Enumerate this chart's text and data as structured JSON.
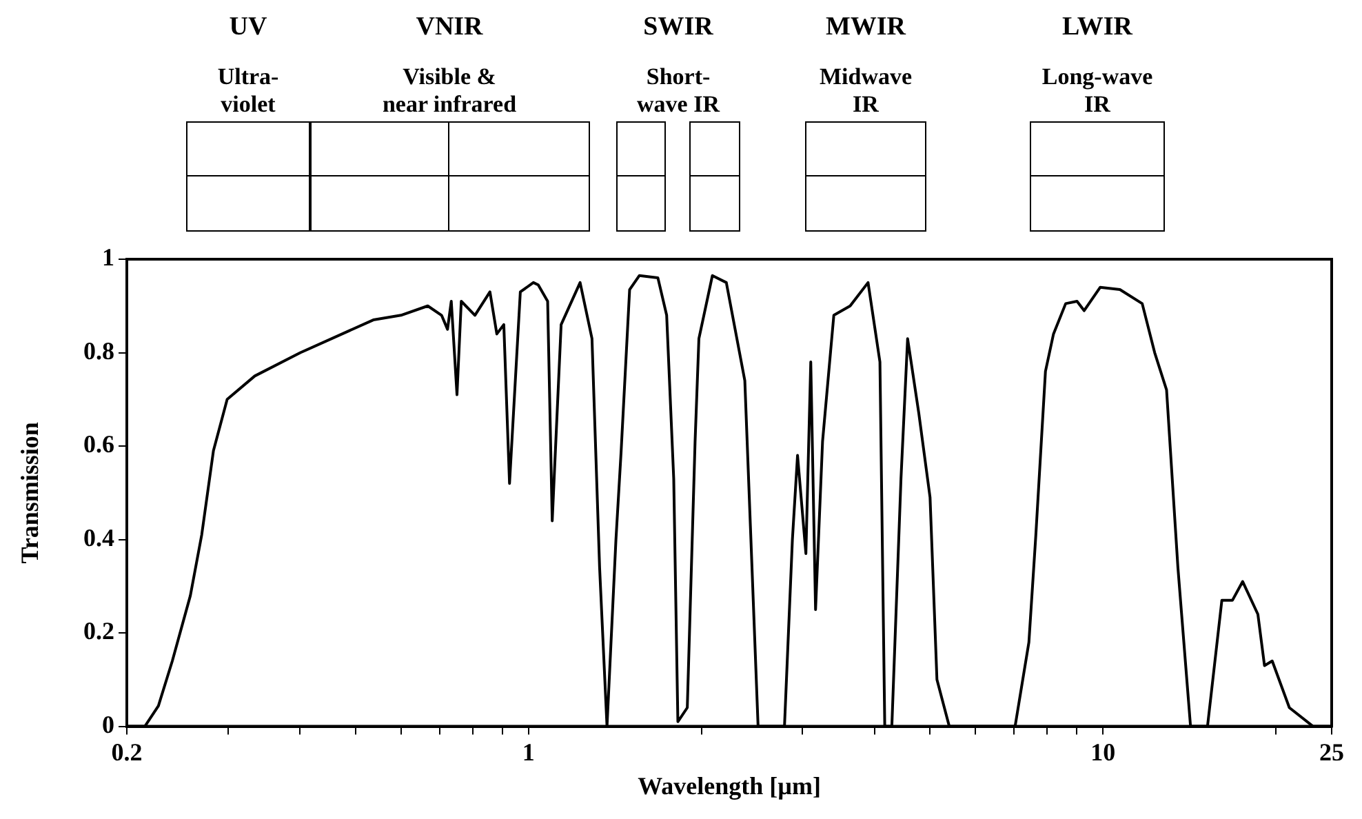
{
  "chart_data": {
    "type": "line",
    "xlabel": "Wavelength [µm]",
    "ylabel": "Transmission",
    "log": "x",
    "xlim": [
      0.2,
      25
    ],
    "ylim": [
      0,
      1
    ],
    "xticks": [
      0.2,
      {
        "value": 0.3,
        "label": null
      },
      {
        "value": 0.4,
        "label": null
      },
      {
        "value": 0.5,
        "label": null
      },
      {
        "value": 0.6,
        "label": null
      },
      {
        "value": 0.7,
        "label": null
      },
      {
        "value": 0.8,
        "label": null
      },
      {
        "value": 0.9,
        "label": null
      },
      1,
      {
        "value": 2,
        "label": null
      },
      {
        "value": 3,
        "label": null
      },
      {
        "value": 4,
        "label": null
      },
      {
        "value": 5,
        "label": null
      },
      {
        "value": 6,
        "label": null
      },
      {
        "value": 7,
        "label": null
      },
      {
        "value": 8,
        "label": null
      },
      {
        "value": 9,
        "label": null
      },
      10,
      {
        "value": 20,
        "label": null
      },
      25
    ],
    "yticks": [
      0,
      0.2,
      0.4,
      0.6,
      0.8,
      1
    ],
    "x": [
      0.2,
      0.215,
      0.227,
      0.24,
      0.258,
      0.27,
      0.283,
      0.299,
      0.334,
      0.401,
      0.537,
      0.6,
      0.668,
      0.706,
      0.723,
      0.734,
      0.751,
      0.764,
      0.807,
      0.857,
      0.881,
      0.906,
      0.927,
      0.968,
      1.02,
      1.04,
      1.08,
      1.1,
      1.14,
      1.23,
      1.29,
      1.33,
      1.37,
      1.42,
      1.45,
      1.5,
      1.56,
      1.68,
      1.74,
      1.79,
      1.82,
      1.89,
      1.95,
      1.98,
      2.09,
      2.21,
      2.38,
      2.51,
      2.79,
      2.88,
      2.94,
      3.04,
      3.1,
      3.16,
      3.25,
      3.4,
      3.63,
      3.9,
      4.09,
      4.17,
      4.29,
      4.45,
      4.57,
      4.78,
      5.0,
      5.14,
      5.4,
      7.03,
      7.43,
      7.64,
      7.94,
      8.2,
      8.61,
      9.01,
      9.27,
      9.89,
      10.7,
      11.7,
      12.3,
      12.9,
      13.5,
      14.2,
      15.2,
      16.1,
      16.8,
      17.5,
      18.6,
      19.1,
      19.7,
      21.1,
      23.2,
      25
    ],
    "series": [
      {
        "color": "#000000",
        "values": [
          0,
          0,
          0.044,
          0.14,
          0.28,
          0.41,
          0.59,
          0.7,
          0.75,
          0.8,
          0.87,
          0.88,
          0.9,
          0.88,
          0.85,
          0.91,
          0.71,
          0.91,
          0.88,
          0.93,
          0.84,
          0.86,
          0.52,
          0.93,
          0.95,
          0.945,
          0.91,
          0.44,
          0.86,
          0.95,
          0.83,
          0.34,
          0,
          0.4,
          0.59,
          0.935,
          0.965,
          0.96,
          0.88,
          0.53,
          0.01,
          0.04,
          0.61,
          0.83,
          0.965,
          0.95,
          0.74,
          0,
          0,
          0.4,
          0.58,
          0.37,
          0.78,
          0.25,
          0.61,
          0.88,
          0.9,
          0.95,
          0.78,
          0,
          0,
          0.53,
          0.83,
          0.67,
          0.49,
          0.1,
          0,
          0,
          0.18,
          0.41,
          0.76,
          0.84,
          0.905,
          0.91,
          0.89,
          0.94,
          0.935,
          0.905,
          0.8,
          0.72,
          0.34,
          0,
          0,
          0.27,
          0.27,
          0.31,
          0.24,
          0.13,
          0.14,
          0.04,
          0,
          0
        ]
      }
    ],
    "annotations": [
      "UV\nUltra-\nviolet",
      "VNIR\nVisible &\nnear infrared",
      "SWIR\nShort-\nwave IR",
      "MWIR\nMidwave\nIR",
      "LWIR\nLong-wave\nIR"
    ]
  }
}
